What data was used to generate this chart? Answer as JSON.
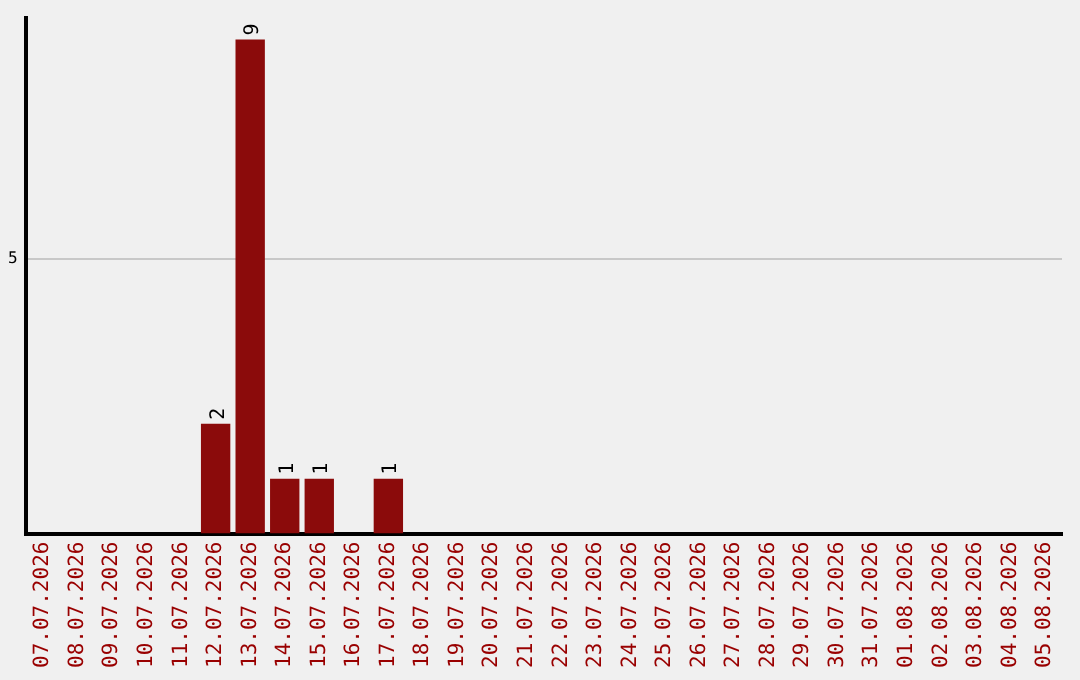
{
  "chart_data": {
    "type": "bar",
    "categories": [
      "07.07.2026",
      "08.07.2026",
      "09.07.2026",
      "10.07.2026",
      "11.07.2026",
      "12.07.2026",
      "13.07.2026",
      "14.07.2026",
      "15.07.2026",
      "16.07.2026",
      "17.07.2026",
      "18.07.2026",
      "19.07.2026",
      "20.07.2026",
      "21.07.2026",
      "22.07.2026",
      "23.07.2026",
      "24.07.2026",
      "25.07.2026",
      "26.07.2026",
      "27.07.2026",
      "28.07.2026",
      "29.07.2026",
      "30.07.2026",
      "31.07.2026",
      "01.08.2026",
      "02.08.2026",
      "03.08.2026",
      "04.08.2026",
      "05.08.2026"
    ],
    "values": [
      0,
      0,
      0,
      0,
      0,
      2,
      9,
      1,
      1,
      0,
      1,
      0,
      0,
      0,
      0,
      0,
      0,
      0,
      0,
      0,
      0,
      0,
      0,
      0,
      0,
      0,
      0,
      0,
      0,
      0
    ],
    "value_labels": [
      null,
      null,
      null,
      null,
      null,
      "2",
      "9",
      "1",
      "1",
      null,
      "1",
      null,
      null,
      null,
      null,
      null,
      null,
      null,
      null,
      null,
      null,
      null,
      null,
      null,
      null,
      null,
      null,
      null,
      null,
      null
    ],
    "color": "#8b0b0b",
    "ylim": [
      0,
      9.4
    ],
    "yticks": [
      5
    ],
    "grid": "y",
    "legend": false
  }
}
